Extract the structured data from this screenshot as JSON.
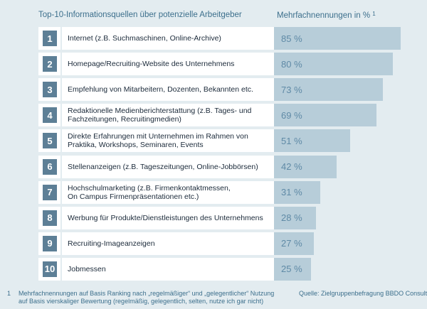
{
  "header": {
    "title": "Top-10-Informationsquellen über potenzielle Arbeitgeber",
    "value_label": "Mehrfachnennungen in %",
    "value_label_footnote": "1"
  },
  "chart_data": {
    "type": "bar",
    "orientation": "horizontal",
    "title": "Top-10-Informationsquellen über potenzielle Arbeitgeber",
    "value_axis_label": "Mehrfachnennungen in %",
    "unit": "%",
    "ranks": [
      "1",
      "2",
      "3",
      "4",
      "5",
      "6",
      "7",
      "8",
      "9",
      "10"
    ],
    "categories": [
      "Internet  (z.B. Suchmaschinen, Online-Archive)",
      "Homepage/Recruiting-Website des Unternehmens",
      "Empfehlung von Mitarbeitern, Dozenten, Bekannten etc.",
      "Redaktionelle Medienberichterstattung (z.B. Tages- und\nFachzeitungen, Recruitingmedien)",
      "Direkte Erfahrungen mit Unternehmen im Rahmen von\nPraktika, Workshops, Seminaren, Events",
      "Stellenanzeigen (z.B. Tageszeitungen, Online-Jobbörsen)",
      "Hochschulmarketing (z.B. Firmenkontaktmessen,\nOn Campus Firmenpräsentationen etc.)",
      "Werbung für Produkte/Dienstleistungen des Unternehmens",
      "Recruiting-Imageanzeigen",
      "Jobmessen"
    ],
    "values": [
      85,
      80,
      73,
      69,
      51,
      42,
      31,
      28,
      27,
      25
    ],
    "value_labels": [
      "85 %",
      "80 %",
      "73 %",
      "69 %",
      "51 %",
      "42 %",
      "31 %",
      "28 %",
      "27 %",
      "25 %"
    ],
    "xlim": [
      0,
      100
    ]
  },
  "footnote": {
    "number": "1",
    "line1": "Mehrfachnennungen auf Basis Ranking nach „regelmäßiger“ und „gelegentlicher“ Nutzung",
    "line2": "auf Basis vierskaliger Bewertung (regelmäßig, gelegentlich, selten, nutze ich gar nicht)"
  },
  "source": "Quelle: Zielgruppenbefragung BBDO Consulting",
  "colors": {
    "background": "#e3ecf0",
    "bar": "#b7cdd9",
    "rank_box": "#5d7f96",
    "accent_text": "#3c6f8c"
  }
}
